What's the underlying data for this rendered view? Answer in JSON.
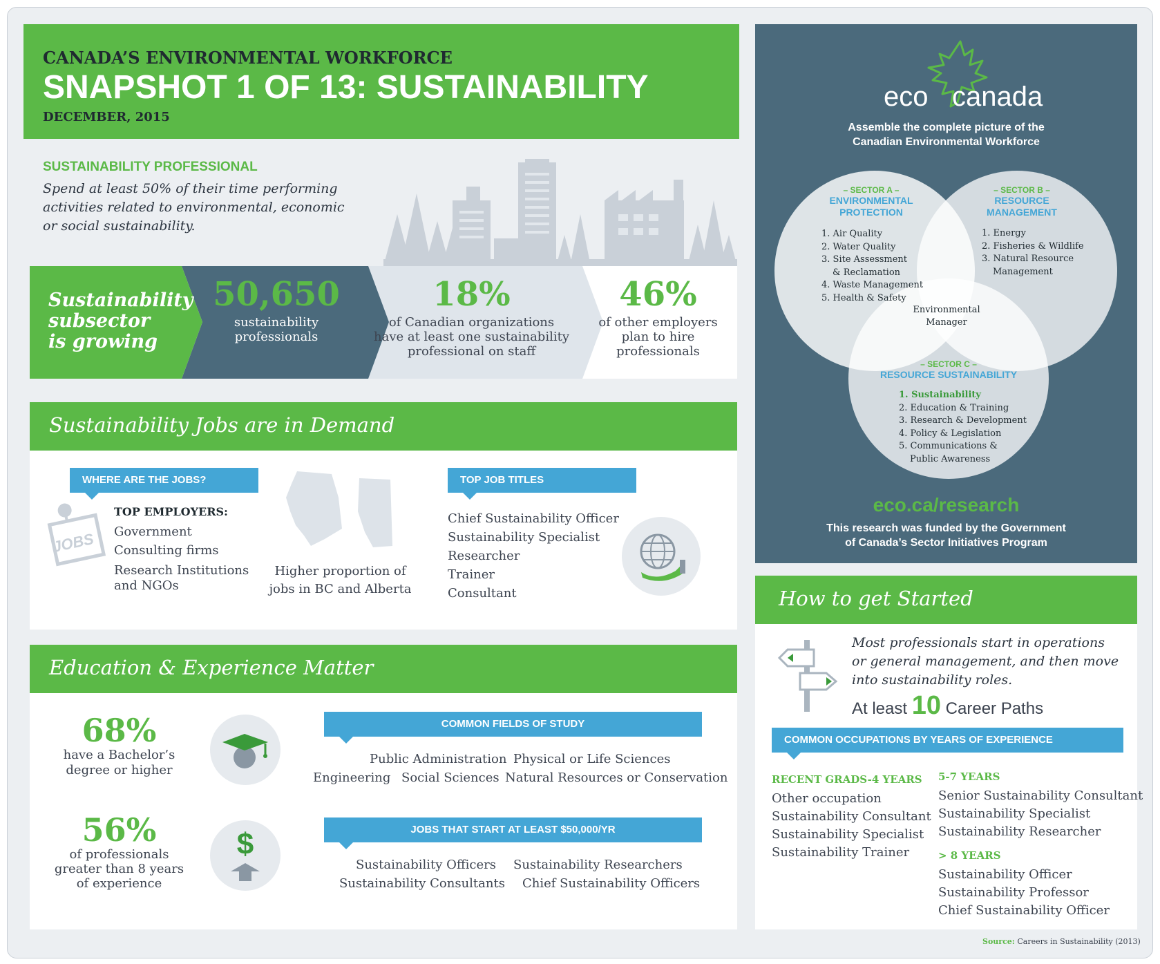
{
  "header": {
    "kicker": "CANADA’S ENVIRONMENTAL WORKFORCE",
    "title": "SNAPSHOT 1 OF 13: SUSTAINABILITY",
    "date": "DECEMBER, 2015"
  },
  "definition": {
    "heading": "SUSTAINABILITY PROFESSIONAL",
    "line1": "Spend at least 50% of their time performing",
    "line2": "activities related to environmental, economic",
    "line3": "or social sustainability."
  },
  "growth": {
    "label_line1": "Sustainability",
    "label_line2": "subsector",
    "label_line3": "is growing",
    "stat1": {
      "value": "50,650",
      "line1": "sustainability",
      "line2": "professionals"
    },
    "stat2": {
      "value": "18%",
      "line1": "of Canadian organizations",
      "line2": "have at least one sustainability",
      "line3": "professional on staff"
    },
    "stat3": {
      "value": "46%",
      "line1": "of other employers",
      "line2": "plan to hire",
      "line3": "professionals"
    }
  },
  "demand": {
    "title": "Sustainability Jobs are in Demand",
    "where_tab": "WHERE ARE THE JOBS?",
    "jobs_icon_text": "JOBS",
    "employers_heading": "TOP EMPLOYERS:",
    "employers": [
      "Government",
      "Consulting firms",
      "Research Institutions",
      "and NGOs"
    ],
    "map_caption_line1": "Higher proportion of",
    "map_caption_line2": "jobs in BC and Alberta",
    "titles_tab": "TOP JOB TITLES",
    "titles": [
      "Chief Sustainability Officer",
      "Sustainability Specialist",
      "Researcher",
      "Trainer",
      "Consultant"
    ]
  },
  "education": {
    "title": "Education & Experience Matter",
    "stat1": {
      "value": "68%",
      "line1": "have a Bachelor’s",
      "line2": "degree or higher"
    },
    "stat2": {
      "value": "56%",
      "line1": "of professionals",
      "line2": "greater than 8 years",
      "line3": "of experience"
    },
    "fields_tab": "COMMON FIELDS OF STUDY",
    "fields": {
      "public_admin": "Public Administration",
      "physical": "Physical or Life Sciences",
      "engineering": "Engineering",
      "social": "Social Sciences",
      "natural": "Natural Resources or Conservation"
    },
    "salary_tab": "JOBS THAT START AT LEAST $50,000/YR",
    "salary_jobs": {
      "officers": "Sustainability Officers",
      "researchers": "Sustainability Researchers",
      "consultants": "Sustainability Consultants",
      "chief": "Chief Sustainability Officers"
    },
    "dollar_symbol": "$"
  },
  "eco": {
    "logo_left": "eco",
    "logo_right": "canada",
    "tagline_line1": "Assemble the complete picture of the",
    "tagline_line2": "Canadian Environmental Workforce",
    "sector_a": {
      "tag": "– SECTOR A –",
      "name1": "ENVIRONMENTAL",
      "name2": "PROTECTION",
      "items": [
        "1. Air Quality",
        "2. Water Quality",
        "3. Site Assessment",
        "& Reclamation",
        "4. Waste Management",
        "5. Health & Safety"
      ]
    },
    "sector_b": {
      "tag": "– SECTOR B –",
      "name1": "RESOURCE",
      "name2": "MANAGEMENT",
      "items": [
        "1. Energy",
        "2. Fisheries & Wildlife",
        "3. Natural Resource",
        "Management"
      ]
    },
    "sector_c": {
      "tag": "– SECTOR C –",
      "name1": "RESOURCE SUSTAINABILITY",
      "highlight": "1. Sustainability",
      "items": [
        "2. Education & Training",
        "3. Research & Development",
        "4. Policy & Legislation",
        "5. Communications &",
        "Public Awareness"
      ]
    },
    "overlap_line1": "Environmental",
    "overlap_line2": "Manager",
    "url": "eco.ca/research",
    "funding_line1": "This research was funded by the Government",
    "funding_line2": "of Canada’s Sector Initiatives Program"
  },
  "started": {
    "title": "How to get Started",
    "intro_line1": "Most professionals start in operations",
    "intro_line2": "or general management, and then move",
    "intro_line3": "into sustainability roles.",
    "paths_prefix": "At least",
    "paths_number": "10",
    "paths_suffix": "Career Paths",
    "occupations_tab": "COMMON OCCUPATIONS BY YEARS OF EXPERIENCE",
    "group1": {
      "heading": "RECENT GRADS-4 YEARS",
      "items": [
        "Other occupation",
        "Sustainability Consultant",
        "Sustainability Specialist",
        "Sustainability Trainer"
      ]
    },
    "group2": {
      "heading": "5-7 YEARS",
      "items": [
        "Senior Sustainability Consultant",
        "Sustainability Specialist",
        "Sustainability Researcher"
      ]
    },
    "group3": {
      "heading": "> 8 YEARS",
      "items": [
        "Sustainability Officer",
        "Sustainability Professor",
        "Chief Sustainability Officer"
      ]
    }
  },
  "source": {
    "label": "Source:",
    "text": "Careers in Sustainability (2013)"
  },
  "colors": {
    "green": "#5bb947",
    "slate": "#4b6a7c",
    "blue": "#44a6d6",
    "text": "#3d4450"
  }
}
